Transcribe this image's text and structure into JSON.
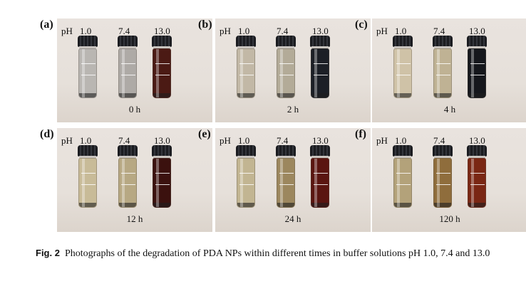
{
  "panels": [
    {
      "label": "(a)",
      "ph_label": "pH",
      "ph_values": [
        "1.0",
        "7.4",
        "13.0"
      ],
      "time": "0 h",
      "vial_colors": [
        "#b9b6b2",
        "#aeaaa6",
        "#4b1a14"
      ]
    },
    {
      "label": "(b)",
      "ph_label": "pH",
      "ph_values": [
        "1.0",
        "7.4",
        "13.0"
      ],
      "time": "2 h",
      "vial_colors": [
        "#c2b8a6",
        "#b3ab98",
        "#1c1f26"
      ]
    },
    {
      "label": "(c)",
      "ph_label": "pH",
      "ph_values": [
        "1.0",
        "7.4",
        "13.0"
      ],
      "time": "4 h",
      "vial_colors": [
        "#cfc2a7",
        "#bfb294",
        "#15171c"
      ]
    },
    {
      "label": "(d)",
      "ph_label": "pH",
      "ph_values": [
        "1.0",
        "7.4",
        "13.0"
      ],
      "time": "12 h",
      "vial_colors": [
        "#c8bb98",
        "#b7a883",
        "#3b110e"
      ]
    },
    {
      "label": "(e)",
      "ph_label": "pH",
      "ph_values": [
        "1.0",
        "7.4",
        "13.0"
      ],
      "time": "24 h",
      "vial_colors": [
        "#c2b592",
        "#9c875e",
        "#5a1510"
      ]
    },
    {
      "label": "(f)",
      "ph_label": "pH",
      "ph_values": [
        "1.0",
        "7.4",
        "13.0"
      ],
      "time": "120 h",
      "vial_colors": [
        "#b3a27a",
        "#8f6d3c",
        "#7a2714"
      ]
    }
  ],
  "caption": {
    "fig_label": "Fig. 2",
    "text": "Photographs of the degradation of PDA NPs within different times in buffer solutions pH 1.0, 7.4 and 13.0"
  }
}
